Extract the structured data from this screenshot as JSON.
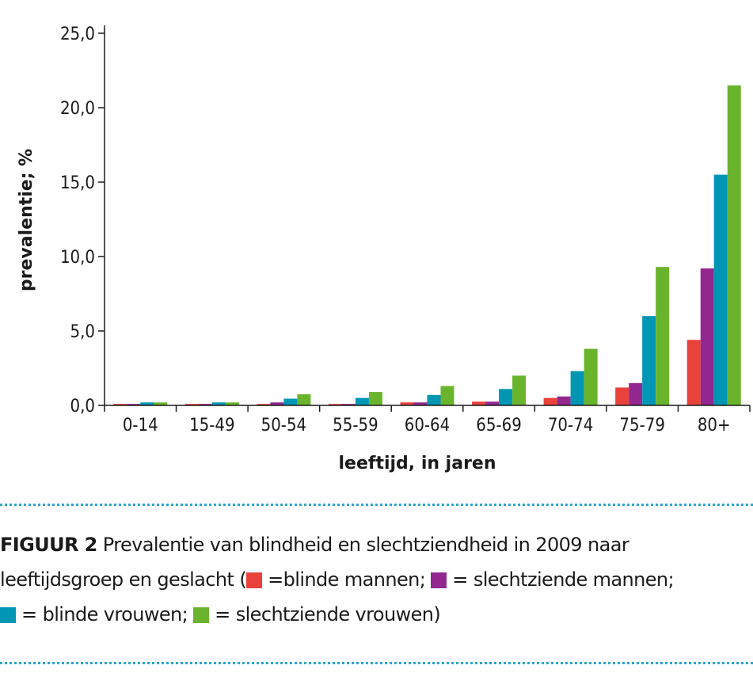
{
  "chart_data": {
    "type": "bar",
    "categories": [
      "0-14",
      "15-49",
      "50-54",
      "55-59",
      "60-64",
      "65-69",
      "70-74",
      "75-79",
      "80+"
    ],
    "series": [
      {
        "color": "#e8423b",
        "values": [
          0.1,
          0.1,
          0.1,
          0.1,
          0.2,
          0.25,
          0.5,
          1.2,
          4.4
        ]
      },
      {
        "color": "#92278f",
        "values": [
          0.1,
          0.1,
          0.2,
          0.1,
          0.2,
          0.25,
          0.6,
          1.5,
          9.2
        ]
      },
      {
        "color": "#0096b4",
        "values": [
          0.2,
          0.2,
          0.45,
          0.5,
          0.7,
          1.1,
          2.3,
          6.0,
          15.5
        ]
      },
      {
        "color": "#6ab42d",
        "values": [
          0.2,
          0.2,
          0.75,
          0.9,
          1.3,
          2.0,
          3.8,
          9.3,
          21.5
        ]
      }
    ],
    "title": "",
    "xlabel": "leeftijd, in jaren",
    "ylabel": "prevalentie; %",
    "ylim": [
      0,
      25
    ],
    "yticks": [
      "0,0",
      "5,0",
      "10,0",
      "15,0",
      "20,0",
      "25,0"
    ],
    "grid": false,
    "legend": "caption"
  },
  "caption": {
    "label": "FIGUUR 2",
    "line1": "Prevalentie van blindheid en slechtziendheid in 2009 naar",
    "line2_prefix": "leeftijdsgroep en geslacht  (",
    "legend_blinde_mannen": "=blinde mannen;",
    "legend_slechtziende_mannen": "= slechtziende mannen;",
    "legend_blinde_vrouwen": "= blinde vrouwen;",
    "legend_slechtziende_vrouwen": "= slechtziende vrouwen)"
  }
}
